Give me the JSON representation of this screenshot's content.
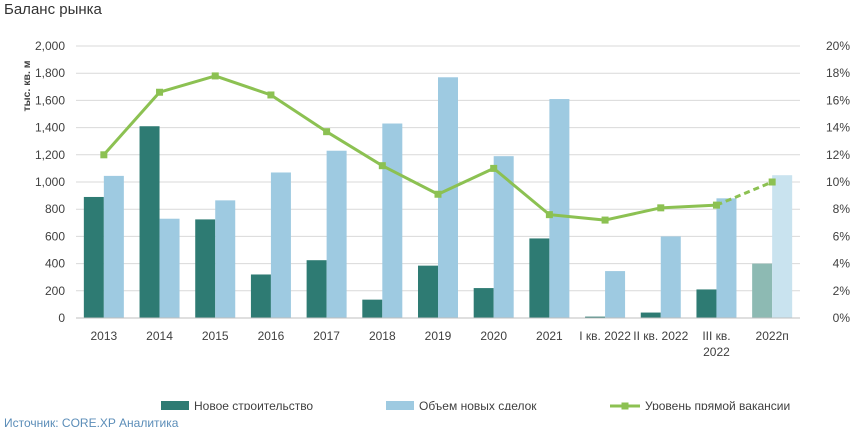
{
  "page": {
    "title": "Баланс рынка",
    "source": "Источник: CORE.XP Аналитика"
  },
  "chart_data": {
    "type": "bar",
    "ylabel": "тыс. кв. м",
    "ylim": [
      0,
      2000
    ],
    "y2lim": [
      0,
      20
    ],
    "yticks": [
      "0",
      "200",
      "400",
      "600",
      "800",
      "1,000",
      "1,200",
      "1,400",
      "1,600",
      "1,800",
      "2,000"
    ],
    "y2ticks": [
      "0%",
      "2%",
      "4%",
      "6%",
      "8%",
      "10%",
      "12%",
      "14%",
      "16%",
      "18%",
      "20%"
    ],
    "categories": [
      [
        "2013"
      ],
      [
        "2014"
      ],
      [
        "2015"
      ],
      [
        "2016"
      ],
      [
        "2017"
      ],
      [
        "2018"
      ],
      [
        "2019"
      ],
      [
        "2020"
      ],
      [
        "2021"
      ],
      [
        "I кв. 2022"
      ],
      [
        "II кв. 2022"
      ],
      [
        "III кв.",
        "2022"
      ],
      [
        "2022п"
      ]
    ],
    "series": [
      {
        "name": "Новое строительство",
        "type": "bar",
        "color": "#2e7b73",
        "forecast_color": "#8dbab3",
        "values": [
          890,
          1410,
          725,
          320,
          425,
          135,
          385,
          220,
          585,
          10,
          40,
          210,
          400
        ]
      },
      {
        "name": "Объем новых сделок",
        "type": "bar",
        "color": "#9ecae1",
        "forecast_color": "#c9e3ef",
        "values": [
          1045,
          730,
          865,
          1070,
          1230,
          1430,
          1770,
          1190,
          1610,
          345,
          600,
          880,
          1050
        ]
      },
      {
        "name": "Уровень прямой вакансии",
        "type": "line",
        "axis": "secondary",
        "color": "#8cc152",
        "values": [
          12.0,
          16.6,
          17.8,
          16.4,
          13.7,
          11.2,
          9.1,
          11.0,
          7.6,
          7.2,
          8.1,
          8.3,
          10.0
        ]
      }
    ],
    "forecast_index": 12,
    "legend_position": "bottom",
    "grid": true
  }
}
